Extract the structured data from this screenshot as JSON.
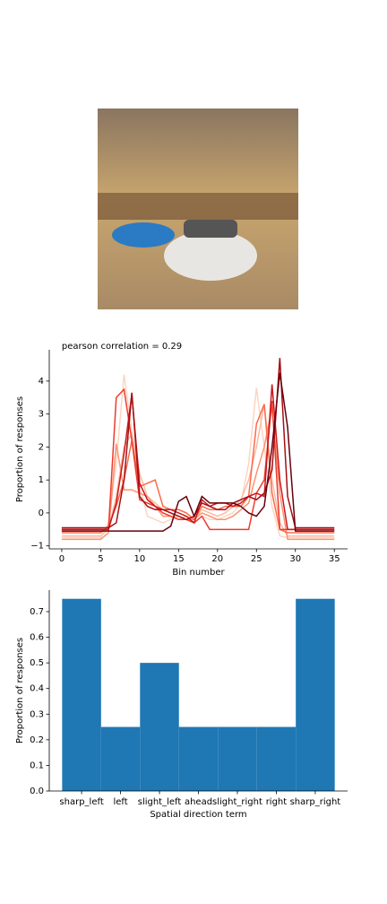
{
  "chart_data": [
    {
      "type": "line",
      "title": "pearson correlation = 0.29",
      "xlabel": "Bin number",
      "ylabel": "Proportion of responses",
      "x": [
        0,
        1,
        2,
        3,
        4,
        5,
        6,
        7,
        8,
        9,
        10,
        11,
        12,
        13,
        14,
        15,
        16,
        17,
        18,
        19,
        20,
        21,
        22,
        23,
        24,
        25,
        26,
        27,
        28,
        29,
        30,
        31,
        32,
        33,
        34,
        35
      ],
      "xlim": [
        -1.6,
        36.7
      ],
      "ylim": [
        -1.09,
        4.95
      ],
      "xticks": [
        0,
        5,
        10,
        15,
        20,
        25,
        30,
        35
      ],
      "yticks": [
        {
          "value": -1,
          "label": "−1"
        },
        0,
        1,
        2,
        3,
        4
      ],
      "series": [
        {
          "color": "#fcd5c3",
          "values": [
            -0.75,
            -0.75,
            -0.75,
            -0.75,
            -0.75,
            -0.75,
            -0.3,
            1.5,
            4.2,
            2.5,
            0.8,
            -0.1,
            -0.2,
            -0.3,
            -0.2,
            -0.1,
            -0.2,
            -0.3,
            -0.1,
            -0.2,
            -0.2,
            -0.1,
            0.0,
            0.3,
            1.5,
            3.8,
            2.0,
            0.2,
            -0.7,
            -0.75,
            -0.75,
            -0.75,
            -0.75,
            -0.75,
            -0.75,
            -0.75
          ]
        },
        {
          "color": "#fcbba1",
          "values": [
            -0.7,
            -0.7,
            -0.7,
            -0.7,
            -0.7,
            -0.7,
            -0.5,
            0.5,
            2.0,
            2.4,
            1.2,
            0.5,
            0.3,
            0.1,
            0.0,
            -0.2,
            -0.1,
            -0.2,
            0.1,
            0.0,
            -0.1,
            0.0,
            0.2,
            0.4,
            1.0,
            2.0,
            3.3,
            1.0,
            -0.3,
            -0.7,
            -0.7,
            -0.7,
            -0.7,
            -0.7,
            -0.7,
            -0.7
          ]
        },
        {
          "color": "#fc9272",
          "values": [
            -0.8,
            -0.8,
            -0.8,
            -0.8,
            -0.8,
            -0.8,
            -0.6,
            2.1,
            0.7,
            0.7,
            0.6,
            0.5,
            0.2,
            -0.1,
            -0.1,
            -0.2,
            -0.2,
            -0.2,
            0.0,
            -0.1,
            -0.2,
            -0.2,
            -0.1,
            0.1,
            0.3,
            1.2,
            2.0,
            3.2,
            0.6,
            -0.8,
            -0.8,
            -0.8,
            -0.8,
            -0.8,
            -0.8,
            -0.8
          ]
        },
        {
          "color": "#fb6a4a",
          "values": [
            -0.6,
            -0.6,
            -0.6,
            -0.6,
            -0.6,
            -0.6,
            -0.4,
            0.2,
            1.0,
            2.2,
            0.8,
            0.9,
            1.0,
            0.2,
            0.1,
            0.1,
            0.0,
            -0.2,
            0.2,
            0.1,
            0.1,
            0.2,
            0.2,
            0.2,
            0.5,
            2.7,
            3.3,
            0.6,
            -0.5,
            -0.6,
            -0.6,
            -0.6,
            -0.6,
            -0.6,
            -0.6,
            -0.6
          ]
        },
        {
          "color": "#ef3b2c",
          "values": [
            -0.5,
            -0.5,
            -0.5,
            -0.5,
            -0.5,
            -0.5,
            -0.5,
            3.5,
            3.75,
            2.2,
            0.4,
            0.3,
            0.2,
            0.0,
            -0.1,
            -0.2,
            -0.2,
            -0.3,
            -0.1,
            -0.5,
            -0.5,
            -0.5,
            -0.5,
            -0.5,
            -0.5,
            0.6,
            1.0,
            3.4,
            -0.5,
            -0.5,
            -0.5,
            -0.5,
            -0.5,
            -0.5,
            -0.5,
            -0.5
          ]
        },
        {
          "color": "#cb181d",
          "values": [
            -0.5,
            -0.5,
            -0.5,
            -0.5,
            -0.5,
            -0.5,
            -0.5,
            0.3,
            1.8,
            3.6,
            0.9,
            0.4,
            0.2,
            0.1,
            0.1,
            0.0,
            -0.1,
            -0.3,
            0.4,
            0.2,
            0.3,
            0.3,
            0.2,
            0.3,
            0.5,
            0.6,
            0.5,
            3.9,
            1.0,
            -0.5,
            -0.5,
            -0.5,
            -0.5,
            -0.5,
            -0.5,
            -0.5
          ]
        },
        {
          "color": "#a50f15",
          "values": [
            -0.45,
            -0.45,
            -0.45,
            -0.45,
            -0.45,
            -0.45,
            -0.45,
            -0.3,
            1.0,
            3.65,
            0.5,
            0.2,
            0.1,
            0.1,
            0.0,
            -0.1,
            -0.2,
            -0.1,
            0.3,
            0.2,
            0.1,
            0.1,
            0.3,
            0.4,
            0.5,
            0.4,
            0.6,
            1.3,
            4.7,
            0.5,
            -0.45,
            -0.45,
            -0.45,
            -0.45,
            -0.45,
            -0.45
          ]
        },
        {
          "color": "#67000d",
          "values": [
            -0.55,
            -0.55,
            -0.55,
            -0.55,
            -0.55,
            -0.55,
            -0.55,
            -0.55,
            -0.55,
            -0.55,
            -0.55,
            -0.55,
            -0.55,
            -0.55,
            -0.4,
            0.35,
            0.5,
            -0.1,
            0.5,
            0.3,
            0.3,
            0.3,
            0.3,
            0.2,
            0.0,
            -0.1,
            0.2,
            2.0,
            4.25,
            2.6,
            -0.55,
            -0.55,
            -0.55,
            -0.55,
            -0.55,
            -0.55
          ]
        }
      ]
    },
    {
      "type": "bar",
      "xlabel": "Spatial direction term",
      "ylabel": "Proportion of responses",
      "categories": [
        "sharp_left",
        "left",
        "slight_left",
        "ahead",
        "slight_right",
        "right",
        "sharp_right"
      ],
      "values": [
        0.75,
        0.25,
        0.5,
        0.25,
        0.25,
        0.25,
        0.75
      ],
      "color": "#1f77b4",
      "xlim": [
        -0.83,
        6.83
      ],
      "ylim": [
        0,
        0.784
      ],
      "yticks": [
        {
          "value": 0,
          "label": "0.0"
        },
        0.1,
        0.2,
        0.3,
        0.4,
        0.5,
        0.6,
        0.7
      ]
    }
  ]
}
